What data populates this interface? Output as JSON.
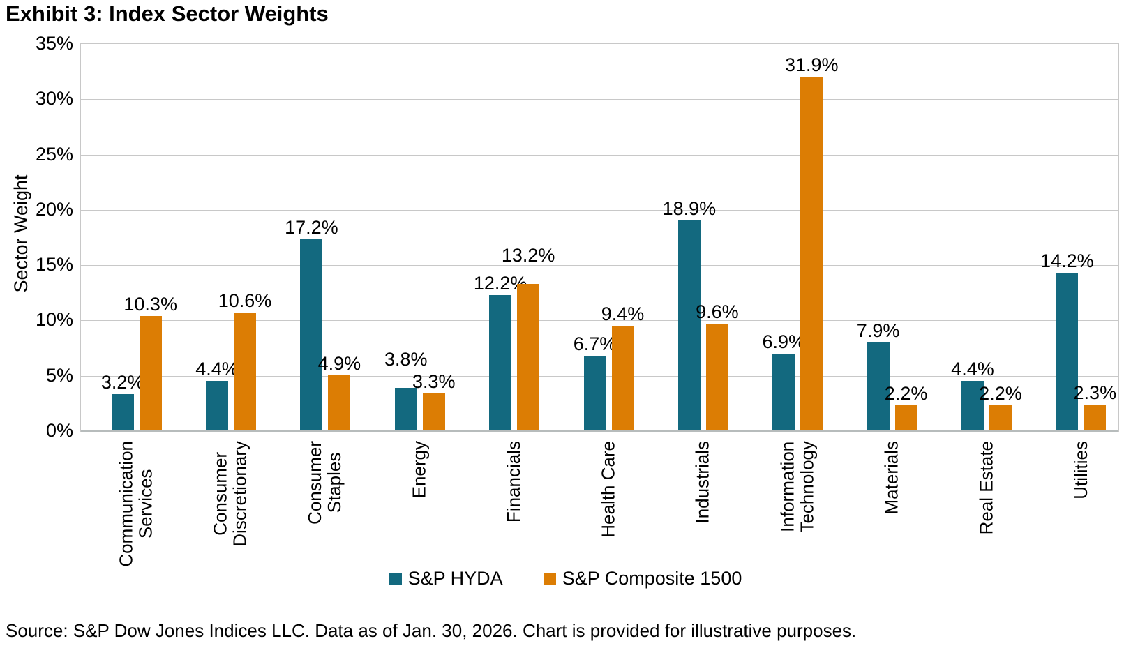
{
  "source": "Source: S&P Dow Jones Indices LLC. Data as of Jan. 30, 2026. Chart is provided for illustrative purposes.",
  "chart_data": {
    "type": "bar",
    "title": "Exhibit 3: Index Sector Weights",
    "ylabel": "Sector Weight",
    "xlabel": "",
    "ylim": [
      0,
      35
    ],
    "ytick_step": 5,
    "ytick_suffix": "%",
    "grid": true,
    "legend_position": "bottom",
    "data_labels": true,
    "data_label_suffix": "%",
    "categories": [
      "Communication Services",
      "Consumer Discretionary",
      "Consumer Staples",
      "Energy",
      "Financials",
      "Health Care",
      "Industrials",
      "Information Technology",
      "Materials",
      "Real Estate",
      "Utilities"
    ],
    "categories_wrapped": [
      [
        "Communication",
        "Services"
      ],
      [
        "Consumer",
        "Discretionary"
      ],
      [
        "Consumer",
        "Staples"
      ],
      [
        "Energy"
      ],
      [
        "Financials"
      ],
      [
        "Health Care"
      ],
      [
        "Industrials"
      ],
      [
        "Information",
        "Technology"
      ],
      [
        "Materials"
      ],
      [
        "Real Estate"
      ],
      [
        "Utilities"
      ]
    ],
    "series": [
      {
        "name": "S&P HYDA",
        "color": "#13697F",
        "values": [
          3.2,
          4.4,
          17.2,
          3.8,
          12.2,
          6.7,
          18.9,
          6.9,
          7.9,
          4.4,
          14.2
        ]
      },
      {
        "name": "S&P Composite 1500",
        "color": "#DC7D04",
        "values": [
          10.3,
          10.6,
          4.9,
          3.3,
          13.2,
          9.4,
          9.6,
          31.9,
          2.2,
          2.2,
          2.3
        ]
      }
    ]
  }
}
